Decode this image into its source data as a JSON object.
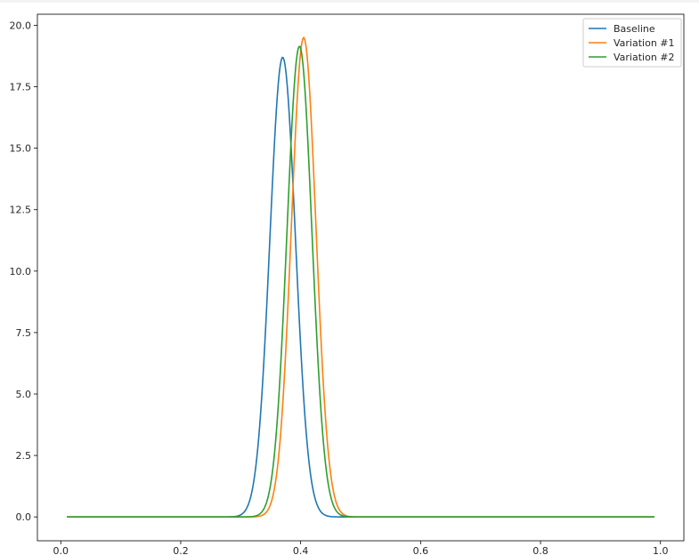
{
  "chart_data": {
    "type": "line",
    "title": "",
    "xlabel": "",
    "ylabel": "",
    "xlim": [
      -0.039,
      1.039
    ],
    "ylim": [
      -0.97,
      20.45
    ],
    "xticks": [
      "0.0",
      "0.2",
      "0.4",
      "0.6",
      "0.8",
      "1.0"
    ],
    "yticks": [
      "0.0",
      "2.5",
      "5.0",
      "7.5",
      "10.0",
      "12.5",
      "15.0",
      "17.5",
      "20.0"
    ],
    "grid": false,
    "legend_position": "top-right",
    "series": [
      {
        "name": "Baseline",
        "color": "#1f77b4",
        "peak_x": 0.37,
        "peak_y": 18.7,
        "sigma": 0.0213
      },
      {
        "name": "Variation #1",
        "color": "#ff7f0e",
        "peak_x": 0.405,
        "peak_y": 19.5,
        "sigma": 0.0205
      },
      {
        "name": "Variation #2",
        "color": "#2ca02c",
        "peak_x": 0.398,
        "peak_y": 19.15,
        "sigma": 0.0208
      }
    ],
    "x_range": [
      0.01,
      0.99
    ]
  }
}
